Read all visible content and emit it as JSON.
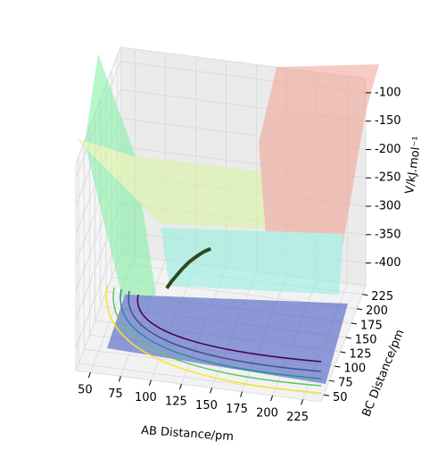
{
  "chart_data": {
    "type": "surface3d",
    "xlabel": "AB Distance/pm",
    "ylabel": "BC Distance/pm",
    "zlabel": "V/kJ.mol⁻¹",
    "xlim": [
      38,
      240
    ],
    "ylim": [
      38,
      240
    ],
    "zlim": [
      -440,
      -75
    ],
    "xticks": [
      50,
      75,
      100,
      125,
      150,
      175,
      200,
      225
    ],
    "yticks": [
      50,
      75,
      100,
      125,
      150,
      175,
      200,
      225
    ],
    "zticks": [
      -100,
      -150,
      -200,
      -250,
      -300,
      -350,
      -400
    ],
    "grid": true,
    "trajectory": {
      "color": "#2f4a1f",
      "x": [
        88,
        92,
        97,
        102,
        108,
        114,
        120,
        126
      ],
      "y": [
        175,
        172,
        170,
        168,
        167,
        166,
        166,
        165
      ],
      "z": [
        -420,
        -405,
        -390,
        -375,
        -360,
        -348,
        -338,
        -330
      ]
    }
  }
}
